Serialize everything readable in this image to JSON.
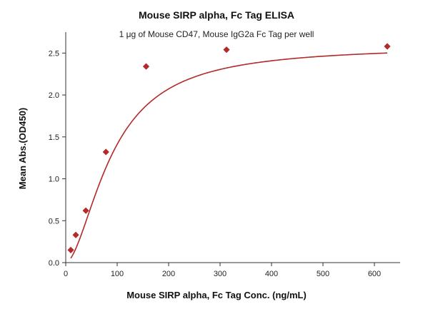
{
  "chart_data": {
    "type": "scatter",
    "title": "Mouse SIRP alpha, Fc Tag ELISA",
    "subtitle": "1 μg of Mouse CD47, Mouse IgG2a Fc Tag per well",
    "xlabel": "Mouse SIRP alpha, Fc Tag Conc. (ng/mL)",
    "ylabel": "Mean Abs.(OD450)",
    "xlim": [
      0,
      650
    ],
    "ylim": [
      0,
      2.75
    ],
    "x_ticks": [
      0,
      100,
      200,
      300,
      400,
      500,
      600
    ],
    "y_ticks": [
      0.0,
      0.5,
      1.0,
      1.5,
      2.0,
      2.5
    ],
    "x_tick_labels": [
      "0",
      "100",
      "200",
      "300",
      "400",
      "500",
      "600"
    ],
    "y_tick_labels": [
      "0.0",
      "0.5",
      "1.0",
      "1.5",
      "2.0",
      "2.5"
    ],
    "grid": false,
    "series": [
      {
        "x": [
          9.77,
          19.53,
          39.06,
          78.13,
          156.25,
          312.5,
          625
        ],
        "y": [
          0.15,
          0.33,
          0.62,
          1.32,
          2.34,
          2.54,
          2.58
        ],
        "marker": "diamond",
        "color": "#b22a2a",
        "fit": "four-parameter logistic curve"
      }
    ]
  }
}
